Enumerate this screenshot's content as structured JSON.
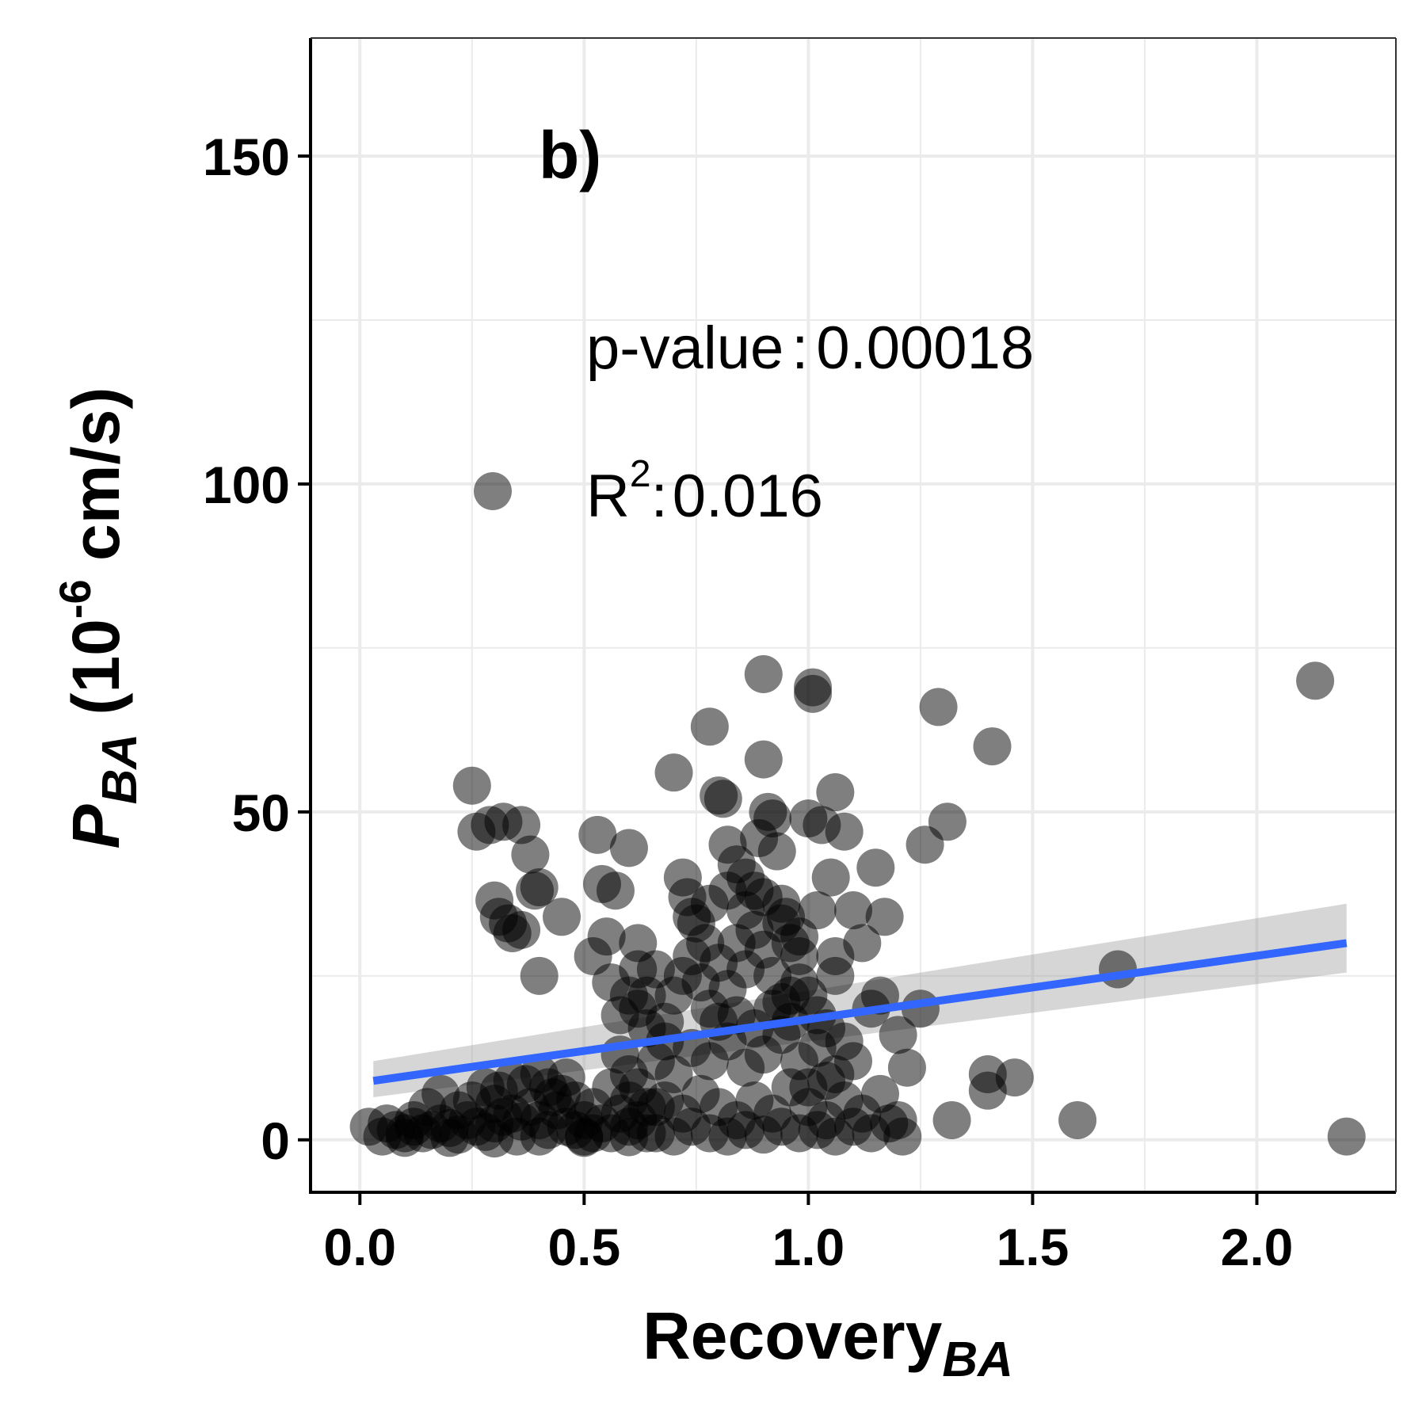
{
  "chart_data": {
    "type": "scatter",
    "panel_label": "b)",
    "x_axis": {
      "label_main": "Recovery",
      "label_sub": "BA",
      "ticks": [
        0.0,
        0.5,
        1.0,
        1.5,
        2.0
      ],
      "tick_labels": [
        "0.0",
        "0.5",
        "1.0",
        "1.5",
        "2.0"
      ],
      "xlim": [
        -0.11,
        2.31
      ]
    },
    "y_axis": {
      "label_main": "P",
      "label_sub": "BA",
      "label_open": " (10",
      "label_sup": "-6",
      "label_close": " cm/s)",
      "ticks": [
        0,
        50,
        100,
        150
      ],
      "tick_labels": [
        "0",
        "50",
        "100",
        "150"
      ],
      "ylim": [
        -8,
        168
      ]
    },
    "grid": true,
    "legend": {
      "placement": "upper-middle",
      "p_label": "p-value",
      "p_value": "0.00018",
      "r2_label": "R",
      "r2_sup": "2",
      "r2_value": "0.016"
    },
    "colors": {
      "points": "#000000",
      "point_opacity": 0.5,
      "fit_line": "#3366ff",
      "confidence_band": "#999999",
      "grid": "#ebebeb",
      "axis": "#000000"
    },
    "fit": {
      "x": [
        0.03,
        2.2
      ],
      "y": [
        9.0,
        30.0
      ],
      "ci_lower": [
        6.5,
        25.5
      ],
      "ci_upper": [
        12.0,
        36.0
      ]
    },
    "points": [
      [
        0.02,
        2
      ],
      [
        0.05,
        0.5
      ],
      [
        0.08,
        1.5
      ],
      [
        0.1,
        1
      ],
      [
        0.12,
        2
      ],
      [
        0.14,
        1
      ],
      [
        0.16,
        1.5
      ],
      [
        0.18,
        2.5
      ],
      [
        0.2,
        1.8
      ],
      [
        0.22,
        0.8
      ],
      [
        0.24,
        3
      ],
      [
        0.26,
        2
      ],
      [
        0.28,
        1.2
      ],
      [
        0.3,
        2.5
      ],
      [
        0.32,
        3.5
      ],
      [
        0.34,
        4
      ],
      [
        0.36,
        2.8
      ],
      [
        0.38,
        5
      ],
      [
        0.4,
        3
      ],
      [
        0.42,
        1.5
      ],
      [
        0.44,
        4.5
      ],
      [
        0.46,
        2
      ],
      [
        0.48,
        6
      ],
      [
        0.5,
        3
      ],
      [
        0.52,
        1
      ],
      [
        0.54,
        2.5
      ],
      [
        0.56,
        8
      ],
      [
        0.58,
        4
      ],
      [
        0.6,
        6
      ],
      [
        0.62,
        3
      ],
      [
        0.64,
        1
      ],
      [
        0.66,
        5
      ],
      [
        0.15,
        5
      ],
      [
        0.18,
        7
      ],
      [
        0.22,
        4.5
      ],
      [
        0.25,
        6
      ],
      [
        0.28,
        8
      ],
      [
        0.31,
        7.5
      ],
      [
        0.34,
        9
      ],
      [
        0.37,
        8.5
      ],
      [
        0.4,
        10
      ],
      [
        0.43,
        6.5
      ],
      [
        0.46,
        9.5
      ],
      [
        0.2,
        0.3
      ],
      [
        0.3,
        0.2
      ],
      [
        0.4,
        0.5
      ],
      [
        0.5,
        0.3
      ],
      [
        0.6,
        0.4
      ],
      [
        0.25,
        54
      ],
      [
        0.26,
        47
      ],
      [
        0.29,
        48
      ],
      [
        0.32,
        48.5
      ],
      [
        0.36,
        48
      ],
      [
        0.38,
        43.5
      ],
      [
        0.4,
        38.5
      ],
      [
        0.39,
        38
      ],
      [
        0.3,
        36.5
      ],
      [
        0.31,
        34
      ],
      [
        0.33,
        33
      ],
      [
        0.34,
        31.5
      ],
      [
        0.36,
        32
      ],
      [
        0.4,
        25
      ],
      [
        0.45,
        34
      ],
      [
        0.53,
        46.5
      ],
      [
        0.54,
        39
      ],
      [
        0.57,
        38
      ],
      [
        0.6,
        44.5
      ],
      [
        0.62,
        30
      ],
      [
        0.55,
        31
      ],
      [
        0.52,
        28
      ],
      [
        0.56,
        24
      ],
      [
        0.6,
        22
      ],
      [
        0.58,
        19
      ],
      [
        0.62,
        20
      ],
      [
        0.64,
        17
      ],
      [
        0.66,
        26
      ],
      [
        0.68,
        15
      ],
      [
        0.7,
        56
      ],
      [
        0.72,
        40
      ],
      [
        0.73,
        37
      ],
      [
        0.75,
        33
      ],
      [
        0.77,
        30
      ],
      [
        0.78,
        63
      ],
      [
        0.8,
        52.5
      ],
      [
        0.81,
        52
      ],
      [
        0.82,
        45
      ],
      [
        0.84,
        42
      ],
      [
        0.86,
        40
      ],
      [
        0.88,
        38
      ],
      [
        0.89,
        46
      ],
      [
        0.9,
        58
      ],
      [
        0.9,
        71
      ],
      [
        0.91,
        50
      ],
      [
        0.92,
        49
      ],
      [
        0.93,
        44
      ],
      [
        0.94,
        36
      ],
      [
        0.95,
        34
      ],
      [
        0.96,
        30
      ],
      [
        0.98,
        28
      ],
      [
        1.0,
        49
      ],
      [
        1.01,
        69
      ],
      [
        1.01,
        68
      ],
      [
        1.03,
        48
      ],
      [
        1.05,
        40
      ],
      [
        1.06,
        53
      ],
      [
        1.08,
        47
      ],
      [
        1.1,
        35
      ],
      [
        1.12,
        30
      ],
      [
        1.15,
        41.5
      ],
      [
        1.17,
        34
      ],
      [
        1.16,
        22
      ],
      [
        1.14,
        20
      ],
      [
        1.2,
        16
      ],
      [
        1.22,
        11
      ],
      [
        1.25,
        20
      ],
      [
        1.26,
        45
      ],
      [
        1.29,
        66
      ],
      [
        1.31,
        48.5
      ],
      [
        1.32,
        3
      ],
      [
        1.4,
        10
      ],
      [
        1.4,
        7.5
      ],
      [
        1.41,
        60
      ],
      [
        1.46,
        9.5
      ],
      [
        1.6,
        3
      ],
      [
        1.69,
        26
      ],
      [
        2.13,
        70
      ],
      [
        2.2,
        0.5
      ],
      [
        0.7,
        22
      ],
      [
        0.72,
        25
      ],
      [
        0.74,
        28
      ],
      [
        0.76,
        24
      ],
      [
        0.78,
        20
      ],
      [
        0.8,
        27
      ],
      [
        0.82,
        23
      ],
      [
        0.84,
        30
      ],
      [
        0.86,
        26
      ],
      [
        0.88,
        32
      ],
      [
        0.9,
        29
      ],
      [
        0.92,
        25
      ],
      [
        0.94,
        21
      ],
      [
        0.96,
        18
      ],
      [
        0.98,
        24
      ],
      [
        1.0,
        22
      ],
      [
        1.02,
        19
      ],
      [
        1.04,
        17
      ],
      [
        1.06,
        25
      ],
      [
        0.66,
        12
      ],
      [
        0.7,
        10
      ],
      [
        0.74,
        14
      ],
      [
        0.78,
        12
      ],
      [
        0.82,
        15
      ],
      [
        0.86,
        11
      ],
      [
        0.9,
        13
      ],
      [
        0.94,
        16
      ],
      [
        0.98,
        12
      ],
      [
        1.02,
        14
      ],
      [
        1.06,
        10
      ],
      [
        1.1,
        12
      ],
      [
        0.68,
        6
      ],
      [
        0.72,
        4
      ],
      [
        0.76,
        7
      ],
      [
        0.8,
        5
      ],
      [
        0.84,
        3
      ],
      [
        0.88,
        6
      ],
      [
        0.92,
        4
      ],
      [
        0.96,
        8
      ],
      [
        1.0,
        5
      ],
      [
        1.04,
        3
      ],
      [
        1.08,
        6
      ],
      [
        1.12,
        4
      ],
      [
        1.16,
        7
      ],
      [
        1.2,
        3
      ],
      [
        1.21,
        0.5
      ],
      [
        0.66,
        1
      ],
      [
        0.7,
        0.5
      ],
      [
        0.74,
        2
      ],
      [
        0.78,
        1
      ],
      [
        0.82,
        0.5
      ],
      [
        0.86,
        1.5
      ],
      [
        0.9,
        0.8
      ],
      [
        0.94,
        2
      ],
      [
        0.98,
        1
      ],
      [
        1.02,
        1.5
      ],
      [
        1.06,
        0.5
      ],
      [
        1.1,
        2
      ],
      [
        1.14,
        1
      ],
      [
        1.18,
        2.5
      ],
      [
        0.74,
        34
      ],
      [
        0.78,
        36
      ],
      [
        0.82,
        38
      ],
      [
        0.86,
        35
      ],
      [
        0.9,
        37
      ],
      [
        0.94,
        33
      ],
      [
        0.98,
        31
      ],
      [
        1.02,
        35
      ],
      [
        1.06,
        28
      ],
      [
        0.8,
        18
      ],
      [
        0.84,
        19
      ],
      [
        0.88,
        17
      ],
      [
        0.92,
        20
      ],
      [
        0.96,
        22
      ],
      [
        1.0,
        8
      ],
      [
        1.04,
        9
      ],
      [
        1.08,
        15
      ],
      [
        0.62,
        26
      ],
      [
        0.64,
        22
      ],
      [
        0.68,
        18
      ],
      [
        0.58,
        13
      ],
      [
        0.6,
        10
      ],
      [
        0.62,
        8
      ],
      [
        0.64,
        5
      ],
      [
        0.6,
        2
      ],
      [
        0.56,
        1
      ],
      [
        0.5,
        0.5
      ],
      [
        0.48,
        1.5
      ],
      [
        0.35,
        0.5
      ],
      [
        0.1,
        0.3
      ],
      [
        0.45,
        7
      ],
      [
        0.52,
        5
      ],
      [
        0.3,
        5.5
      ],
      [
        0.42,
        8
      ],
      [
        0.12,
        3
      ],
      [
        0.06,
        2.5
      ]
    ]
  }
}
